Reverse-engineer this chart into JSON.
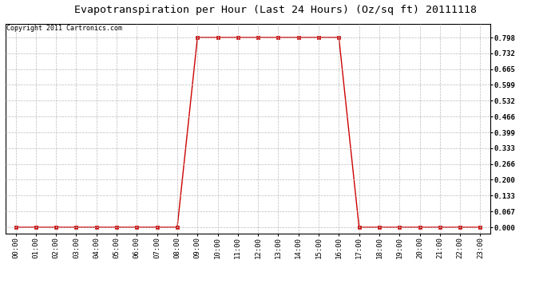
{
  "title": "Evapotranspiration per Hour (Last 24 Hours) (Oz/sq ft) 20111118",
  "copyright_text": "Copyright 2011 Cartronics.com",
  "x_labels": [
    "00:00",
    "01:00",
    "02:00",
    "03:00",
    "04:00",
    "05:00",
    "06:00",
    "07:00",
    "08:00",
    "09:00",
    "10:00",
    "11:00",
    "12:00",
    "13:00",
    "14:00",
    "15:00",
    "16:00",
    "17:00",
    "18:00",
    "19:00",
    "20:00",
    "21:00",
    "22:00",
    "23:00"
  ],
  "y_values": [
    0.0,
    0.0,
    0.0,
    0.0,
    0.0,
    0.0,
    0.0,
    0.0,
    0.0,
    0.798,
    0.798,
    0.798,
    0.798,
    0.798,
    0.798,
    0.798,
    0.798,
    0.0,
    0.0,
    0.0,
    0.0,
    0.0,
    0.0,
    0.0
  ],
  "y_ticks": [
    0.0,
    0.067,
    0.133,
    0.2,
    0.266,
    0.333,
    0.399,
    0.466,
    0.532,
    0.599,
    0.665,
    0.732,
    0.798
  ],
  "y_tick_labels": [
    "0.000",
    "0.067",
    "0.133",
    "0.200",
    "0.266",
    "0.333",
    "0.399",
    "0.466",
    "0.532",
    "0.599",
    "0.665",
    "0.732",
    "0.798"
  ],
  "ylim": [
    -0.025,
    0.855
  ],
  "line_color": "#cc0000",
  "marker": "s",
  "marker_size": 2.5,
  "bg_color": "#ffffff",
  "grid_color": "#bbbbbb",
  "title_fontsize": 9.5,
  "copyright_fontsize": 6.0,
  "tick_fontsize": 6.5,
  "linewidth": 1.0
}
